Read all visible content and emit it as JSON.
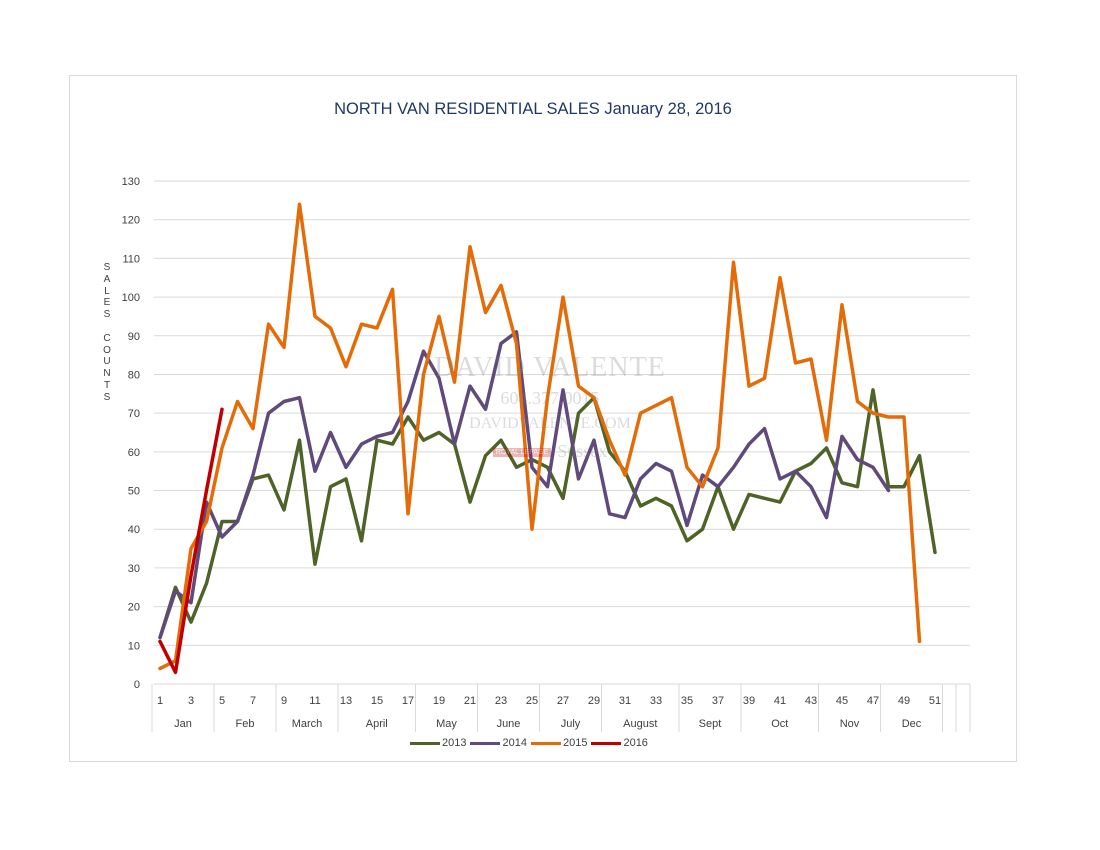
{
  "chart_data": {
    "type": "line",
    "title": "NORTH VAN RESIDENTIAL SALES January 28, 2016",
    "ylabel": "SALES COUNTS",
    "xlabel": "",
    "ylim": [
      0,
      130
    ],
    "yticks": [
      0,
      10,
      20,
      30,
      40,
      50,
      60,
      70,
      80,
      90,
      100,
      110,
      120,
      130
    ],
    "xlim": [
      1,
      52
    ],
    "xticks": [
      "1",
      "3",
      "5",
      "7",
      "9",
      "11",
      "13",
      "15",
      "17",
      "19",
      "21",
      "23",
      "25",
      "27",
      "29",
      "31",
      "33",
      "35",
      "37",
      "39",
      "41",
      "43",
      "45",
      "47",
      "49",
      "51"
    ],
    "months": [
      {
        "label": "Jan",
        "start": 1,
        "end": 5
      },
      {
        "label": "Feb",
        "start": 5,
        "end": 9
      },
      {
        "label": "March",
        "start": 9,
        "end": 13
      },
      {
        "label": "April",
        "start": 13,
        "end": 18
      },
      {
        "label": "May",
        "start": 18,
        "end": 22
      },
      {
        "label": "June",
        "start": 22,
        "end": 26
      },
      {
        "label": "July",
        "start": 26,
        "end": 30
      },
      {
        "label": "August",
        "start": 30,
        "end": 35
      },
      {
        "label": "Sept",
        "start": 35,
        "end": 39
      },
      {
        "label": "Oct",
        "start": 39,
        "end": 44
      },
      {
        "label": "Nov",
        "start": 44,
        "end": 48
      },
      {
        "label": "Dec",
        "start": 48,
        "end": 52
      }
    ],
    "grid": true,
    "legend": "bottom",
    "series": [
      {
        "name": "2013",
        "color": "#4f6228",
        "values": [
          12,
          25,
          16,
          26,
          42,
          42,
          53,
          54,
          45,
          63,
          31,
          51,
          53,
          37,
          63,
          62,
          69,
          63,
          65,
          62,
          47,
          59,
          63,
          56,
          58,
          56,
          48,
          70,
          74,
          60,
          55,
          46,
          48,
          46,
          37,
          40,
          51,
          40,
          49,
          48,
          47,
          55,
          57,
          61,
          52,
          51,
          76,
          51,
          51,
          59,
          34
        ]
      },
      {
        "name": "2014",
        "color": "#604a7b",
        "values": [
          12,
          24,
          21,
          47,
          38,
          42,
          54,
          70,
          73,
          74,
          55,
          65,
          56,
          62,
          64,
          65,
          73,
          86,
          79,
          62,
          77,
          71,
          88,
          91,
          56,
          51,
          76,
          53,
          63,
          44,
          43,
          53,
          57,
          55,
          41,
          54,
          51,
          56,
          62,
          66,
          53,
          55,
          51,
          43,
          64,
          58,
          56,
          50
        ]
      },
      {
        "name": "2015",
        "color": "#e36c09",
        "values": [
          4,
          6,
          35,
          42,
          61,
          73,
          66,
          93,
          87,
          124,
          95,
          92,
          82,
          93,
          92,
          102,
          44,
          80,
          95,
          78,
          113,
          96,
          103,
          88,
          40,
          74,
          100,
          77,
          74,
          63,
          54,
          70,
          72,
          74,
          56,
          51,
          61,
          109,
          77,
          79,
          105,
          83,
          84,
          63,
          98,
          73,
          70,
          69,
          69,
          11
        ]
      },
      {
        "name": "2016",
        "color": "#c00000",
        "values": [
          11,
          3,
          28,
          50,
          71
        ]
      }
    ]
  },
  "watermark": {
    "name": "DAVID VALENTE",
    "phone": "604.377.0015",
    "site": "DAVIDVALENTE.COM",
    "brand_box": "ROYAL LEPAGE",
    "brand": "Sussex"
  }
}
